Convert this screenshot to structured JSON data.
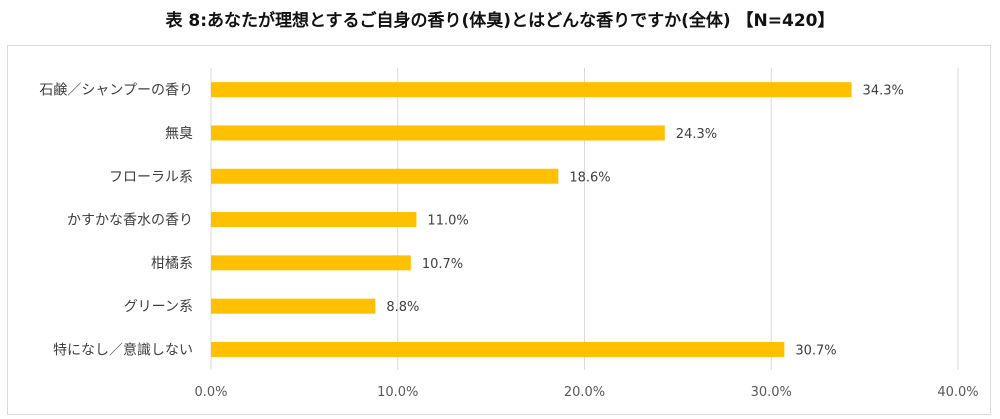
{
  "chart_data": {
    "type": "bar",
    "orientation": "horizontal",
    "title": "表 8:あなたが理想とするご自身の香り(体臭)とはどんな香りですか(全体) 【N=420】",
    "categories": [
      "石鹸／シャンプーの香り",
      "無臭",
      "フローラル系",
      "かすかな香水の香り",
      "柑橘系",
      "グリーン系",
      "特になし／意識しない"
    ],
    "values": [
      34.3,
      24.3,
      18.6,
      11.0,
      10.7,
      8.8,
      30.7
    ],
    "value_labels": [
      "34.3%",
      "24.3%",
      "18.6%",
      "11.0%",
      "10.7%",
      "8.8%",
      "30.7%"
    ],
    "x_ticks": [
      0,
      10,
      20,
      30,
      40
    ],
    "x_tick_labels": [
      "0.0%",
      "10.0%",
      "20.0%",
      "30.0%",
      "40.0%"
    ],
    "xlim": [
      0,
      40
    ],
    "grid": true,
    "bar_color": "#FFC000",
    "grid_color": "#D9D9D9"
  }
}
